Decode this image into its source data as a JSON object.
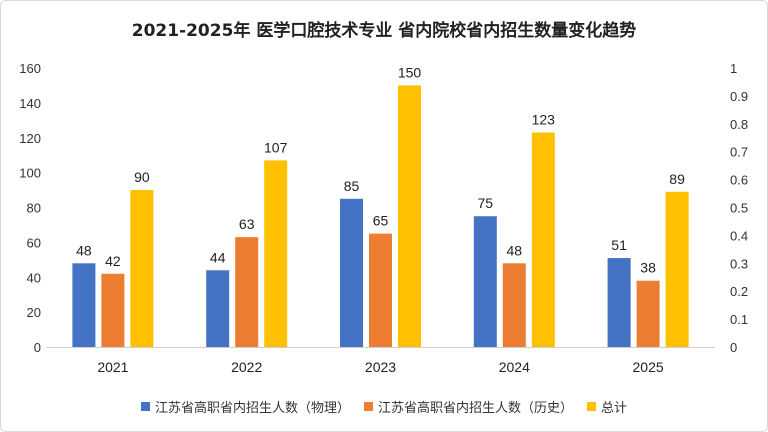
{
  "chart_data": {
    "type": "bar",
    "title": "2021-2025年 医学口腔技术专业 省内院校省内招生数量变化趋势",
    "categories": [
      "2021",
      "2022",
      "2023",
      "2024",
      "2025"
    ],
    "series": [
      {
        "name": "江苏省高职省内招生人数（物理）",
        "color": "#4472C4",
        "values": [
          48,
          44,
          85,
          75,
          51
        ]
      },
      {
        "name": "江苏省高职省内招生人数（历史）",
        "color": "#ED7D31",
        "values": [
          42,
          63,
          65,
          48,
          38
        ]
      },
      {
        "name": "总计",
        "color": "#FFC000",
        "values": [
          90,
          107,
          150,
          123,
          89
        ]
      }
    ],
    "ylim": [
      0,
      160
    ],
    "yticks": [
      "0",
      "20",
      "40",
      "60",
      "80",
      "100",
      "120",
      "140",
      "160"
    ],
    "y2lim": [
      0,
      1
    ],
    "y2ticks": [
      "0",
      "0.1",
      "0.2",
      "0.3",
      "0.4",
      "0.5",
      "0.6",
      "0.7",
      "0.8",
      "0.9",
      "1"
    ],
    "grid": false,
    "legend": "bottom"
  }
}
